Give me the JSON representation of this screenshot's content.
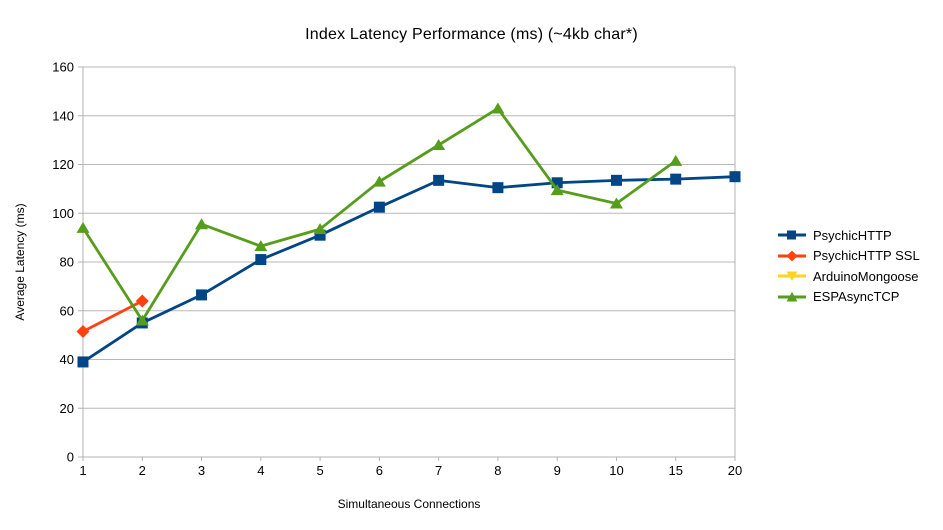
{
  "chart_data": {
    "type": "line",
    "title": "Index Latency Performance (ms) (~4kb char*)",
    "xlabel": "Simultaneous Connections",
    "ylabel": "Average Latency (ms)",
    "categories": [
      "1",
      "2",
      "3",
      "4",
      "5",
      "6",
      "7",
      "8",
      "9",
      "10",
      "15",
      "20"
    ],
    "ylim": [
      0,
      160
    ],
    "ytick_step": 20,
    "grid": "horizontal",
    "legend_position": "right",
    "colors": {
      "axis": "#b3b3b3",
      "grid": "#b8b8b8",
      "text": "#000000",
      "background": "#ffffff"
    },
    "series": [
      {
        "name": "PsychicHTTP",
        "color": "#004586",
        "marker": "square",
        "values": [
          39,
          55,
          66.5,
          81,
          91,
          102.5,
          113.5,
          110.5,
          112.5,
          113.5,
          114,
          115
        ]
      },
      {
        "name": "PsychicHTTP SSL",
        "color": "#FF420E",
        "marker": "diamond",
        "values": [
          51.5,
          64,
          null,
          null,
          null,
          null,
          null,
          null,
          null,
          null,
          null,
          null
        ]
      },
      {
        "name": "ArduinoMongoose",
        "color": "#FFD320",
        "marker": "triangle-down",
        "values": [
          null,
          null,
          null,
          null,
          null,
          null,
          null,
          null,
          null,
          null,
          null,
          null
        ]
      },
      {
        "name": "ESPAsyncTCP",
        "color": "#579D1C",
        "marker": "triangle-up",
        "values": [
          94,
          56,
          95.5,
          86.5,
          93.5,
          113,
          128,
          143,
          109.5,
          104,
          121.5,
          null
        ]
      }
    ]
  }
}
